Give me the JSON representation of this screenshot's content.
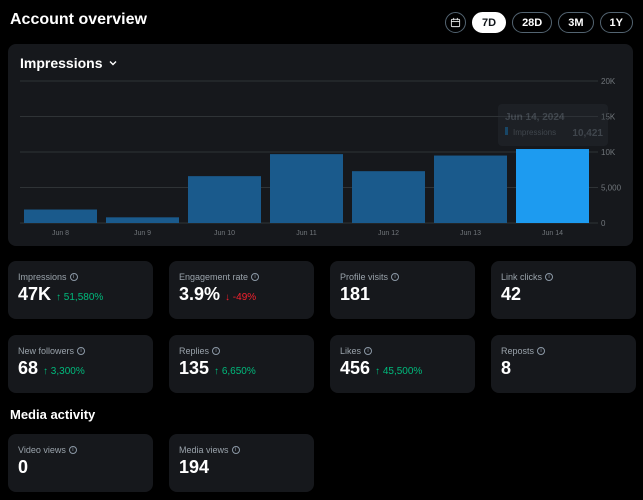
{
  "header": {
    "title": "Account overview",
    "ranges": [
      {
        "label": "7D",
        "active": true
      },
      {
        "label": "28D",
        "active": false
      },
      {
        "label": "3M",
        "active": false
      },
      {
        "label": "1Y",
        "active": false
      }
    ]
  },
  "chart": {
    "selector_label": "Impressions",
    "tooltip": {
      "date": "Jun 14, 2024",
      "metric": "Impressions",
      "value": "10,421"
    },
    "colors": {
      "bar": "#1a5a8c",
      "bar_highlight": "#1d9bf0"
    }
  },
  "chart_data": {
    "type": "bar",
    "categories": [
      "Jun 8",
      "Jun 9",
      "Jun 10",
      "Jun 11",
      "Jun 12",
      "Jun 13",
      "Jun 14"
    ],
    "values": [
      1900,
      800,
      6600,
      9700,
      7300,
      9500,
      10421
    ],
    "ylim": [
      0,
      20000
    ],
    "yticks": [
      0,
      5000,
      10000,
      15000,
      20000
    ],
    "ytick_labels": [
      "0",
      "5,000",
      "10K",
      "15K",
      "20K"
    ],
    "highlight_index": 6,
    "grid": true
  },
  "metrics": [
    {
      "label": "Impressions",
      "value": "47K",
      "delta": "↑ 51,580%",
      "dir": "up"
    },
    {
      "label": "Engagement rate",
      "value": "3.9%",
      "delta": "↓ -49%",
      "dir": "down"
    },
    {
      "label": "Profile visits",
      "value": "181",
      "delta": "",
      "dir": ""
    },
    {
      "label": "Link clicks",
      "value": "42",
      "delta": "",
      "dir": ""
    },
    {
      "label": "New followers",
      "value": "68",
      "delta": "↑ 3,300%",
      "dir": "up"
    },
    {
      "label": "Replies",
      "value": "135",
      "delta": "↑ 6,650%",
      "dir": "up"
    },
    {
      "label": "Likes",
      "value": "456",
      "delta": "↑ 45,500%",
      "dir": "up"
    },
    {
      "label": "Reposts",
      "value": "8",
      "delta": "",
      "dir": ""
    }
  ],
  "media": {
    "title": "Media activity",
    "metrics": [
      {
        "label": "Video views",
        "value": "0"
      },
      {
        "label": "Media views",
        "value": "194"
      }
    ]
  }
}
